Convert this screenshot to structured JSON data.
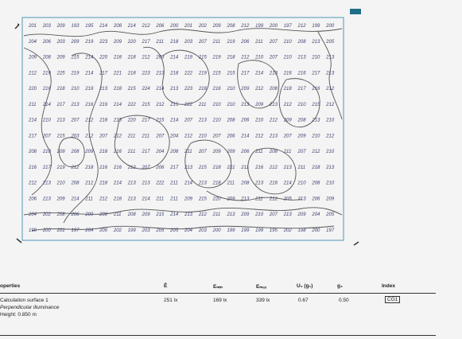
{
  "plot": {
    "iso_values": [
      [
        "201",
        "203",
        "209",
        "193",
        "195",
        "214",
        "208",
        "214",
        "212",
        "206",
        "200",
        "201",
        "202",
        "209",
        "208",
        "212",
        "199",
        "200",
        "197",
        "212",
        "199",
        "200"
      ],
      [
        "204",
        "206",
        "203",
        "209",
        "219",
        "223",
        "209",
        "220",
        "217",
        "211",
        "218",
        "203",
        "207",
        "211",
        "219",
        "206",
        "211",
        "207",
        "210",
        "208",
        "213",
        "205"
      ],
      [
        "209",
        "208",
        "209",
        "215",
        "214",
        "220",
        "218",
        "218",
        "212",
        "209",
        "214",
        "219",
        "215",
        "219",
        "218",
        "212",
        "210",
        "207",
        "210",
        "213",
        "210",
        "213"
      ],
      [
        "212",
        "219",
        "225",
        "219",
        "214",
        "217",
        "221",
        "218",
        "223",
        "213",
        "218",
        "222",
        "219",
        "215",
        "215",
        "217",
        "214",
        "213",
        "216",
        "216",
        "217",
        "213"
      ],
      [
        "220",
        "216",
        "218",
        "210",
        "219",
        "213",
        "218",
        "215",
        "224",
        "214",
        "213",
        "223",
        "218",
        "216",
        "210",
        "209",
        "212",
        "208",
        "218",
        "217",
        "216",
        "212"
      ],
      [
        "211",
        "214",
        "217",
        "213",
        "216",
        "219",
        "214",
        "222",
        "215",
        "212",
        "215",
        "222",
        "211",
        "210",
        "210",
        "213",
        "209",
        "213",
        "212",
        "210",
        "215",
        "212"
      ],
      [
        "214",
        "210",
        "213",
        "207",
        "212",
        "218",
        "213",
        "220",
        "217",
        "215",
        "214",
        "207",
        "213",
        "210",
        "208",
        "206",
        "210",
        "212",
        "209",
        "208",
        "213",
        "210"
      ],
      [
        "217",
        "207",
        "215",
        "203",
        "212",
        "207",
        "212",
        "211",
        "211",
        "207",
        "204",
        "212",
        "210",
        "207",
        "206",
        "214",
        "212",
        "213",
        "207",
        "209",
        "210",
        "212"
      ],
      [
        "208",
        "210",
        "209",
        "208",
        "209",
        "218",
        "216",
        "211",
        "217",
        "204",
        "208",
        "211",
        "207",
        "209",
        "209",
        "206",
        "211",
        "208",
        "211",
        "207",
        "212",
        "210"
      ],
      [
        "216",
        "217",
        "219",
        "212",
        "218",
        "216",
        "216",
        "212",
        "207",
        "206",
        "217",
        "213",
        "215",
        "218",
        "221",
        "211",
        "216",
        "212",
        "213",
        "211",
        "218",
        "213"
      ],
      [
        "212",
        "213",
        "210",
        "208",
        "212",
        "218",
        "214",
        "213",
        "213",
        "222",
        "211",
        "214",
        "213",
        "218",
        "211",
        "208",
        "213",
        "216",
        "214",
        "210",
        "208",
        "210"
      ],
      [
        "206",
        "213",
        "209",
        "214",
        "211",
        "212",
        "218",
        "213",
        "214",
        "211",
        "211",
        "209",
        "215",
        "220",
        "209",
        "213",
        "211",
        "212",
        "205",
        "213",
        "206",
        "209"
      ],
      [
        "204",
        "202",
        "208",
        "206",
        "209",
        "208",
        "211",
        "208",
        "209",
        "215",
        "214",
        "213",
        "212",
        "211",
        "213",
        "209",
        "210",
        "207",
        "213",
        "209",
        "204",
        "205"
      ],
      [
        "199",
        "200",
        "201",
        "197",
        "204",
        "200",
        "202",
        "199",
        "203",
        "205",
        "205",
        "204",
        "203",
        "200",
        "199",
        "199",
        "199",
        "195",
        "202",
        "198",
        "200",
        "197"
      ]
    ]
  },
  "table": {
    "headers": {
      "properties": "operties",
      "e": "Ē",
      "emin": "Eₘᵢₙ",
      "emax": "Eₘₐₓ",
      "u0": "U₀ (g₁)",
      "g2": "g₂",
      "index": "Index"
    },
    "row": {
      "name_line1": "Calculation surface 1",
      "name_line2": "Perpendicular illuminance",
      "name_line3": "Height: 0.850 m",
      "e": "251 lx",
      "emin": "169 lx",
      "emax": "339 lx",
      "u0": "0.67",
      "g2": "0.50",
      "index": "CG1"
    }
  }
}
